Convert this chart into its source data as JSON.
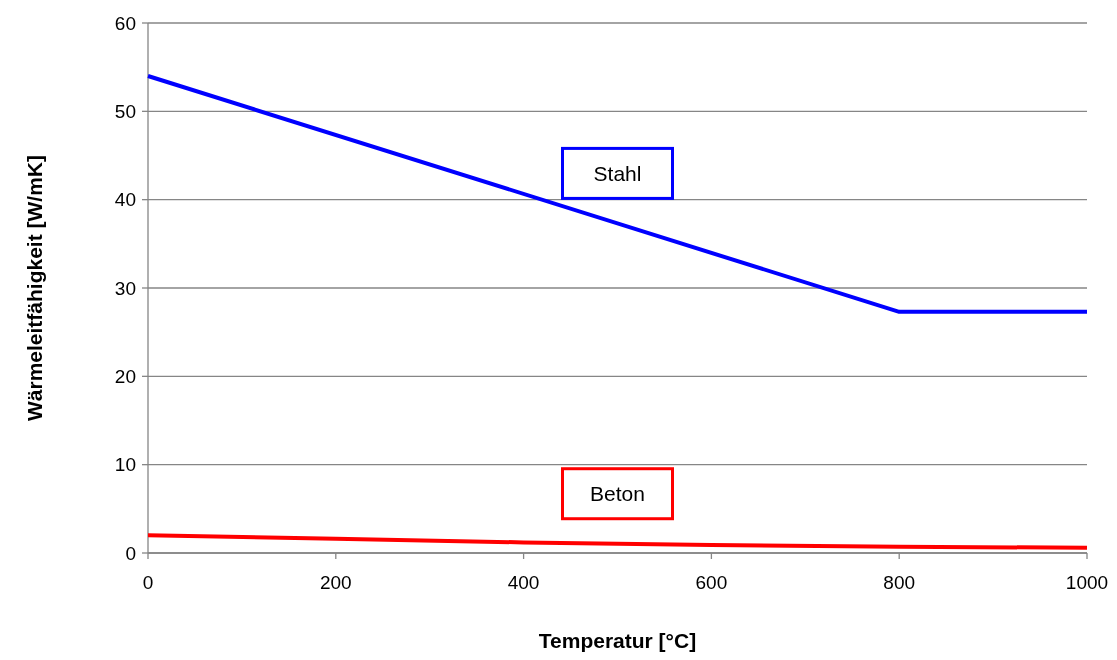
{
  "chart_data": {
    "type": "line",
    "xlabel": "Temperatur [°C]",
    "ylabel": "Wärmeleitfähigkeit [W/mK]",
    "xlim": [
      0,
      1000
    ],
    "xticks": [
      0,
      200,
      400,
      600,
      800,
      1000
    ],
    "ylim": [
      0,
      60
    ],
    "yticks": [
      0,
      10,
      20,
      30,
      40,
      50,
      60
    ],
    "grid": "y",
    "legend": false,
    "series": [
      {
        "name": "Stahl",
        "color": "#0000ff",
        "x": [
          0,
          800,
          1000
        ],
        "values": [
          54,
          27.3,
          27.3
        ]
      },
      {
        "name": "Beton",
        "color": "#ff0000",
        "x": [
          0,
          200,
          400,
          600,
          800,
          1000
        ],
        "values": [
          2,
          1.6,
          1.2,
          0.9,
          0.7,
          0.6
        ]
      }
    ]
  }
}
